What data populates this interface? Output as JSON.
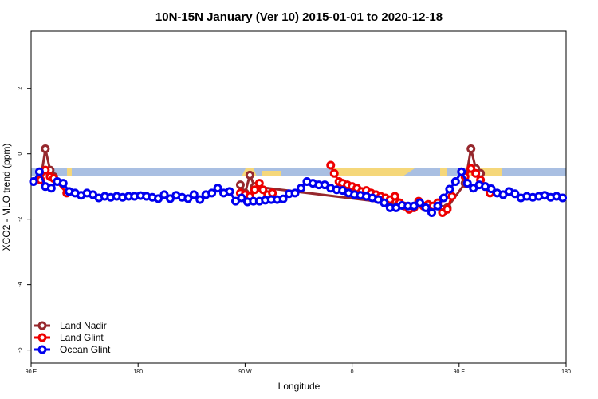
{
  "chart_data": {
    "type": "line",
    "title": "10N-15N January (Ver 10)   2015-01-01 to 2020-12-18",
    "x_label": "Longitude",
    "y_label": "XCO2 - MLO trend (ppm)",
    "xlim": [
      90,
      540
    ],
    "ylim": [
      -6.4,
      3.75
    ],
    "xticks": [
      {
        "value": 90,
        "label": "90 E"
      },
      180,
      {
        "value": 270,
        "label": "90 W"
      },
      {
        "value": 360,
        "label": "0"
      },
      {
        "value": 450,
        "label": "90 E"
      },
      {
        "value": 540,
        "label": "180"
      }
    ],
    "yticks": [
      -6,
      -4,
      -2,
      0,
      2
    ],
    "legend_position": "bottomleft",
    "series": [
      {
        "name": "Land Nadir",
        "color": "#96282d",
        "x": [
          98,
          102,
          106,
          109,
          112,
          266,
          270,
          274,
          278,
          436,
          440,
          455,
          460,
          464,
          468
        ],
        "values": [
          -0.8,
          0.15,
          -0.5,
          -0.7,
          null,
          -0.95,
          -1.2,
          -0.65,
          -1.0,
          -1.7,
          -1.65,
          -0.9,
          0.15,
          -0.45,
          -0.6
        ]
      },
      {
        "name": "Land Glint",
        "color": "#ee0000",
        "x": [
          98,
          102,
          106,
          109,
          120,
          124,
          266,
          270,
          274,
          278,
          282,
          285,
          289,
          293,
          297,
          342,
          345,
          349,
          352,
          356,
          360,
          364,
          368,
          372,
          376,
          380,
          384,
          388,
          392,
          396,
          400,
          404,
          408,
          412,
          416,
          420,
          424,
          428,
          432,
          436,
          440,
          444,
          448,
          455,
          460,
          464,
          468,
          472,
          476
        ],
        "values": [
          -0.8,
          -0.5,
          -0.7,
          -0.75,
          -1.2,
          null,
          -1.2,
          -1.25,
          -1.3,
          -1.1,
          -0.9,
          -1.1,
          -1.25,
          -1.2,
          null,
          -0.35,
          -0.6,
          -0.85,
          -0.9,
          -0.95,
          -1.0,
          -1.05,
          -1.15,
          -1.12,
          -1.2,
          -1.25,
          -1.3,
          -1.35,
          -1.4,
          -1.3,
          -1.5,
          -1.6,
          -1.7,
          -1.65,
          -1.45,
          -1.6,
          -1.55,
          -1.6,
          -1.5,
          -1.8,
          -1.7,
          -1.3,
          null,
          -0.7,
          -0.45,
          -0.6,
          -0.8,
          -1.0,
          -1.2
        ]
      },
      {
        "name": "Ocean Glint",
        "color": "#0000ee",
        "x": [
          92,
          97,
          102,
          107,
          112,
          117,
          122,
          127,
          132,
          137,
          142,
          147,
          152,
          157,
          162,
          167,
          172,
          177,
          182,
          187,
          192,
          197,
          202,
          207,
          212,
          217,
          222,
          227,
          232,
          237,
          242,
          247,
          252,
          257,
          262,
          267,
          272,
          277,
          282,
          287,
          292,
          297,
          302,
          307,
          312,
          317,
          322,
          327,
          332,
          337,
          342,
          347,
          352,
          357,
          362,
          367,
          372,
          377,
          382,
          387,
          392,
          397,
          402,
          407,
          412,
          417,
          422,
          427,
          432,
          437,
          442,
          447,
          452,
          457,
          462,
          467,
          472,
          477,
          482,
          487,
          492,
          497,
          502,
          507,
          512,
          517,
          522,
          527,
          532,
          537
        ],
        "values": [
          -0.85,
          -0.55,
          -1.0,
          -1.05,
          -0.85,
          -0.9,
          -1.15,
          -1.2,
          -1.27,
          -1.2,
          -1.25,
          -1.35,
          -1.3,
          -1.33,
          -1.3,
          -1.33,
          -1.3,
          -1.3,
          -1.28,
          -1.3,
          -1.33,
          -1.37,
          -1.25,
          -1.37,
          -1.27,
          -1.33,
          -1.37,
          -1.25,
          -1.4,
          -1.25,
          -1.2,
          -1.05,
          -1.2,
          -1.15,
          -1.45,
          -1.35,
          -1.47,
          -1.45,
          -1.45,
          -1.42,
          -1.4,
          -1.4,
          -1.38,
          -1.22,
          -1.2,
          -1.05,
          -0.85,
          -0.9,
          -0.95,
          -0.95,
          -1.05,
          -1.1,
          -1.12,
          -1.2,
          -1.25,
          -1.27,
          -1.3,
          -1.35,
          -1.4,
          -1.5,
          -1.65,
          -1.65,
          -1.58,
          -1.6,
          -1.6,
          -1.5,
          -1.65,
          -1.8,
          -1.6,
          -1.35,
          -1.08,
          -0.85,
          -0.55,
          -0.9,
          -1.05,
          -0.95,
          -1.0,
          -1.07,
          -1.2,
          -1.25,
          -1.15,
          -1.22,
          -1.35,
          -1.3,
          -1.33,
          -1.3,
          -1.27,
          -1.33,
          -1.3,
          -1.35
        ]
      }
    ]
  }
}
